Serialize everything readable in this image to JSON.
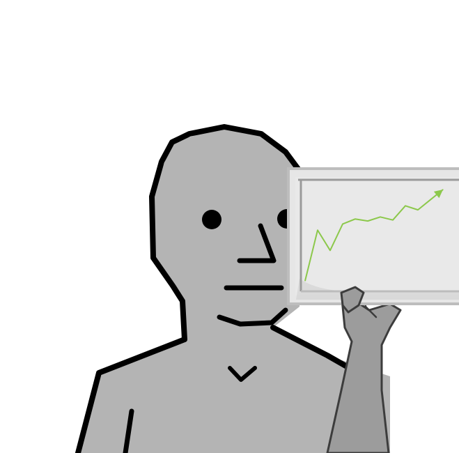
{
  "scene": {
    "subject": "npc-figure",
    "prop": "growth-chart-board"
  },
  "colors": {
    "background": "#ffffff",
    "skin": "#b4b4b4",
    "outline": "#000000",
    "board_fill": "#e6e6e6",
    "board_frame": "#bdbdbd",
    "trend_line": "#8cc84b",
    "hand_fill": "#9c9c9c",
    "hand_outline": "#3c3c3c"
  },
  "chart_data": {
    "type": "line",
    "title": "",
    "xlabel": "",
    "ylabel": "",
    "x": [
      0,
      1,
      2,
      3,
      4,
      5,
      6,
      7,
      8,
      9,
      10,
      11
    ],
    "values": [
      0,
      5,
      3,
      5.6,
      6.1,
      5.9,
      6.3,
      6.0,
      7.4,
      7.0,
      8.0,
      9.0
    ],
    "arrow_end": true,
    "grid": false,
    "axis_lines": [
      "left",
      "top"
    ]
  }
}
